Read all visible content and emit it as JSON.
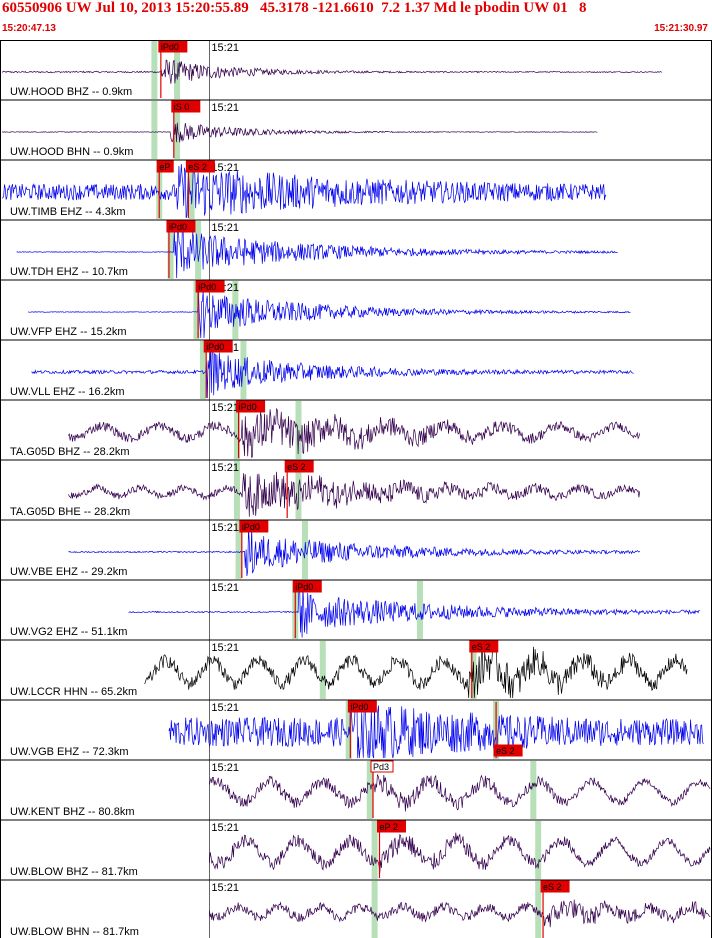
{
  "event": {
    "title": "60550906 UW Jul 10, 2013 15:20:55.89   45.3178 -121.6610  7.2 1.37 Md le pbodin UW 01   8",
    "window_start": "15:20:47.13",
    "window_end": "15:21:30.97"
  },
  "colors": {
    "frame": "#000000",
    "pick": "#e00000",
    "theory_band": "#b8e0b8",
    "trace_blue": "#0000ee",
    "trace_dark": "#33004d",
    "trace_black": "#000000"
  },
  "chart_data": {
    "type": "line",
    "title": "60550906 UW Jul 10, 2013 15:20:55.89   45.3178 -121.6610  7.2 1.37 Md le pbodin UW 01   8",
    "x_range": [
      "15:20:47.13",
      "15:21:30.97"
    ],
    "x_range_seconds": [
      47.13,
      90.97
    ],
    "minute_tick_label": "15:21",
    "minute_tick_seconds": 60,
    "origin_seconds": 55.89,
    "xlabel": "",
    "ylabel": "",
    "grid": false,
    "legend": "none",
    "series": [
      {
        "label": "UW.HOOD BHZ -- 0.9km",
        "color": "trace_dark",
        "start_s": 47.2,
        "end_s": 88.0,
        "onset_s": 57.0,
        "coda_s": 4.0,
        "pre_amp": 0.04,
        "peak_amp": 0.55,
        "noise": 0.02,
        "style": "spike",
        "bands_s": [
          56.6,
          58.0
        ],
        "picks": [
          {
            "label": "iPd0",
            "time_s": 57.0,
            "label_pos": "top"
          }
        ]
      },
      {
        "label": "UW.HOOD BHN -- 0.9km",
        "color": "trace_dark",
        "start_s": 47.2,
        "end_s": 84.0,
        "onset_s": 57.6,
        "coda_s": 4.0,
        "pre_amp": 0.01,
        "peak_amp": 0.45,
        "noise": 0.01,
        "style": "quiet",
        "bands_s": [
          56.6,
          58.0
        ],
        "picks": [
          {
            "label": "iS 0",
            "time_s": 57.8,
            "label_pos": "top"
          }
        ]
      },
      {
        "label": "UW.TIMB EHZ -- 4.3km",
        "color": "trace_blue",
        "start_s": 47.2,
        "end_s": 84.5,
        "onset_s": 58.0,
        "coda_s": 10.0,
        "pre_amp": 0.25,
        "peak_amp": 0.9,
        "noise": 0.25,
        "style": "noisy",
        "bands_s": [
          56.9,
          58.9
        ],
        "picks": [
          {
            "label": "eP",
            "time_s": 56.9,
            "label_pos": "top"
          },
          {
            "label": "eS 2",
            "time_s": 58.7,
            "label_pos": "top"
          }
        ]
      },
      {
        "label": "UW.TDH EHZ -- 10.7km",
        "color": "trace_blue",
        "start_s": 48.1,
        "end_s": 85.2,
        "onset_s": 57.8,
        "coda_s": 8.0,
        "pre_amp": 0.01,
        "peak_amp": 0.9,
        "noise": 0.01,
        "style": "burst",
        "bands_s": [
          57.6,
          59.3
        ],
        "picks": [
          {
            "label": "iPd0",
            "time_s": 57.5,
            "label_pos": "top"
          }
        ]
      },
      {
        "label": "UW.VFP EHZ -- 15.2km",
        "color": "trace_blue",
        "start_s": 48.8,
        "end_s": 86.0,
        "onset_s": 59.3,
        "coda_s": 7.0,
        "pre_amp": 0.01,
        "peak_amp": 0.85,
        "noise": 0.01,
        "style": "burst",
        "bands_s": [
          59.2,
          61.6
        ],
        "picks": [
          {
            "label": "iPd0",
            "time_s": 59.3,
            "label_pos": "top"
          }
        ]
      },
      {
        "label": "UW.VLL EHZ -- 16.2km",
        "color": "trace_blue",
        "start_s": 49.0,
        "end_s": 86.2,
        "onset_s": 59.8,
        "coda_s": 6.0,
        "pre_amp": 0.05,
        "peak_amp": 0.8,
        "noise": 0.05,
        "style": "burst",
        "bands_s": [
          59.6,
          62.1
        ],
        "picks": [
          {
            "label": "iPd0",
            "time_s": 59.8,
            "label_pos": "top"
          }
        ]
      },
      {
        "label": "TA.G05D BHZ -- 28.2km",
        "color": "trace_dark",
        "start_s": 51.3,
        "end_s": 86.6,
        "onset_s": 62.0,
        "coda_s": 9.0,
        "pre_amp": 0.3,
        "peak_amp": 0.8,
        "noise": 0.1,
        "style": "wavy",
        "bands_s": [
          61.7,
          65.5
        ],
        "picks": [
          {
            "label": "iPd0",
            "time_s": 61.8,
            "label_pos": "top"
          }
        ]
      },
      {
        "label": "TA.G05D BHE -- 28.2km",
        "color": "trace_dark",
        "start_s": 51.3,
        "end_s": 86.6,
        "onset_s": 62.0,
        "coda_s": 9.0,
        "pre_amp": 0.2,
        "peak_amp": 0.8,
        "noise": 0.08,
        "style": "wavy",
        "bands_s": [
          61.7,
          65.5
        ],
        "picks": [
          {
            "label": "eS 2",
            "time_s": 64.8,
            "label_pos": "top"
          }
        ]
      },
      {
        "label": "UW.VBE EHZ -- 29.2km",
        "color": "trace_blue",
        "start_s": 51.3,
        "end_s": 86.6,
        "onset_s": 62.2,
        "coda_s": 8.0,
        "pre_amp": 0.02,
        "peak_amp": 0.75,
        "noise": 0.02,
        "style": "burst",
        "bands_s": [
          61.8,
          65.9
        ],
        "picks": [
          {
            "label": "iPd0",
            "time_s": 62.0,
            "label_pos": "top"
          }
        ]
      },
      {
        "label": "UW.VG2 EHZ -- 51.1km",
        "color": "trace_blue",
        "start_s": 55.0,
        "end_s": 90.3,
        "onset_s": 65.5,
        "coda_s": 9.0,
        "pre_amp": 0.02,
        "peak_amp": 0.75,
        "noise": 0.02,
        "style": "burst",
        "bands_s": [
          65.3,
          73.0
        ],
        "picks": [
          {
            "label": "iPd0",
            "time_s": 65.3,
            "label_pos": "top"
          }
        ]
      },
      {
        "label": "UW.LCCR HHN -- 65.2km",
        "color": "trace_black",
        "start_s": 56.0,
        "end_s": 89.5,
        "onset_s": 76.0,
        "coda_s": 8.0,
        "pre_amp": 0.55,
        "peak_amp": 0.75,
        "noise": 0.12,
        "style": "wavy",
        "bands_s": [
          67.0,
          76.3
        ],
        "picks": [
          {
            "label": "eS 2",
            "time_s": 76.2,
            "label_pos": "top"
          }
        ]
      },
      {
        "label": "UW.VGB EHZ -- 72.3km",
        "color": "trace_blue",
        "start_s": 57.5,
        "end_s": 90.5,
        "onset_s": 68.7,
        "coda_s": 7.0,
        "pre_amp": 0.45,
        "peak_amp": 0.9,
        "noise": 0.45,
        "style": "noisy",
        "bands_s": [
          68.6,
          77.7
        ],
        "picks": [
          {
            "label": "iPd0",
            "time_s": 68.7,
            "label_pos": "top"
          },
          {
            "label": "eS 2",
            "time_s": 77.7,
            "label_pos": "bottom"
          }
        ]
      },
      {
        "label": "UW.KENT BHZ -- 80.8km",
        "color": "trace_dark",
        "start_s": 60.0,
        "end_s": 90.97,
        "onset_s": 70.1,
        "coda_s": 8.0,
        "pre_amp": 0.5,
        "peak_amp": 0.35,
        "noise": 0.1,
        "style": "wavy",
        "bands_s": [
          69.9,
          80.0
        ],
        "picks": [
          {
            "label": "Pd3",
            "time_s": 70.1,
            "label_pos": "top",
            "boxed": true
          }
        ]
      },
      {
        "label": "UW.BLOW BHZ -- 81.7km",
        "color": "trace_dark",
        "start_s": 60.0,
        "end_s": 90.97,
        "onset_s": 70.5,
        "coda_s": 8.0,
        "pre_amp": 0.55,
        "peak_amp": 0.35,
        "noise": 0.12,
        "style": "wavy",
        "bands_s": [
          70.2,
          80.3
        ],
        "picks": [
          {
            "label": "eP 2",
            "time_s": 70.5,
            "label_pos": "top"
          }
        ]
      },
      {
        "label": "UW.BLOW BHN -- 81.7km",
        "color": "trace_dark",
        "start_s": 60.0,
        "end_s": 90.97,
        "onset_s": 80.6,
        "coda_s": 8.0,
        "pre_amp": 0.25,
        "peak_amp": 0.35,
        "noise": 0.12,
        "style": "wavy",
        "bands_s": [
          70.2,
          80.3
        ],
        "picks": [
          {
            "label": "eS 2",
            "time_s": 80.6,
            "label_pos": "top"
          }
        ]
      }
    ]
  }
}
